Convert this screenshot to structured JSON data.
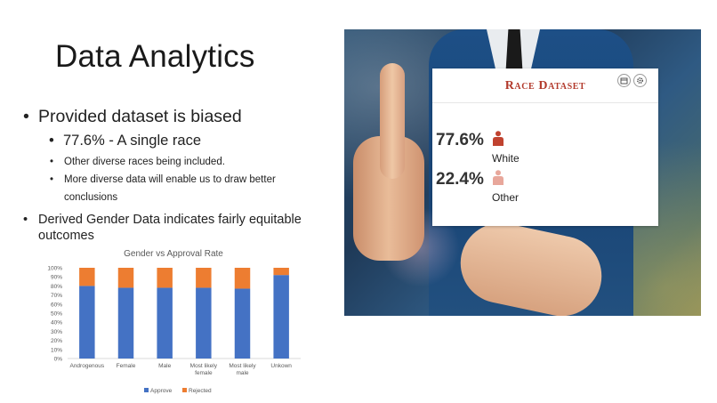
{
  "slide": {
    "title": "Data Analytics",
    "bullets": {
      "main1": "Provided dataset is biased",
      "sub1": "77.6% - A single race",
      "sub2": "Other diverse races being included.",
      "sub3_line1": "More diverse data will enable us to draw better",
      "sub3_line2": "conclusions",
      "main2": "Derived Gender Data indicates fairly equitable outcomes"
    }
  },
  "race_card": {
    "title": "Race Dataset",
    "icons": [
      "calendar-icon",
      "gear-icon"
    ],
    "rows": [
      {
        "percent": "77.6%",
        "label": "White",
        "color": "#c0422f"
      },
      {
        "percent": "22.4%",
        "label": "Other",
        "color": "#e8a79b"
      }
    ]
  },
  "chart_data": {
    "type": "bar",
    "stacked": true,
    "title": "Gender vs Approval Rate",
    "categories": [
      "Androgenous",
      "Female",
      "Male",
      "Most likely female",
      "Most likely male",
      "Unkown"
    ],
    "category_lines": [
      [
        "Androgenous"
      ],
      [
        "Female"
      ],
      [
        "Male"
      ],
      [
        "Most likely",
        "female"
      ],
      [
        "Most likely",
        "male"
      ],
      [
        "Unkown"
      ]
    ],
    "series": [
      {
        "name": "Approve",
        "values": [
          80,
          78,
          78,
          78,
          77,
          92
        ],
        "color": "#4472c4"
      },
      {
        "name": "Rejected",
        "values": [
          20,
          22,
          22,
          22,
          23,
          8
        ],
        "color": "#ed7d31"
      }
    ],
    "yticks": [
      "0%",
      "10%",
      "20%",
      "30%",
      "40%",
      "50%",
      "60%",
      "70%",
      "80%",
      "90%",
      "100%"
    ],
    "ylim": [
      0,
      100
    ],
    "legend": "bottom",
    "grid": false
  }
}
